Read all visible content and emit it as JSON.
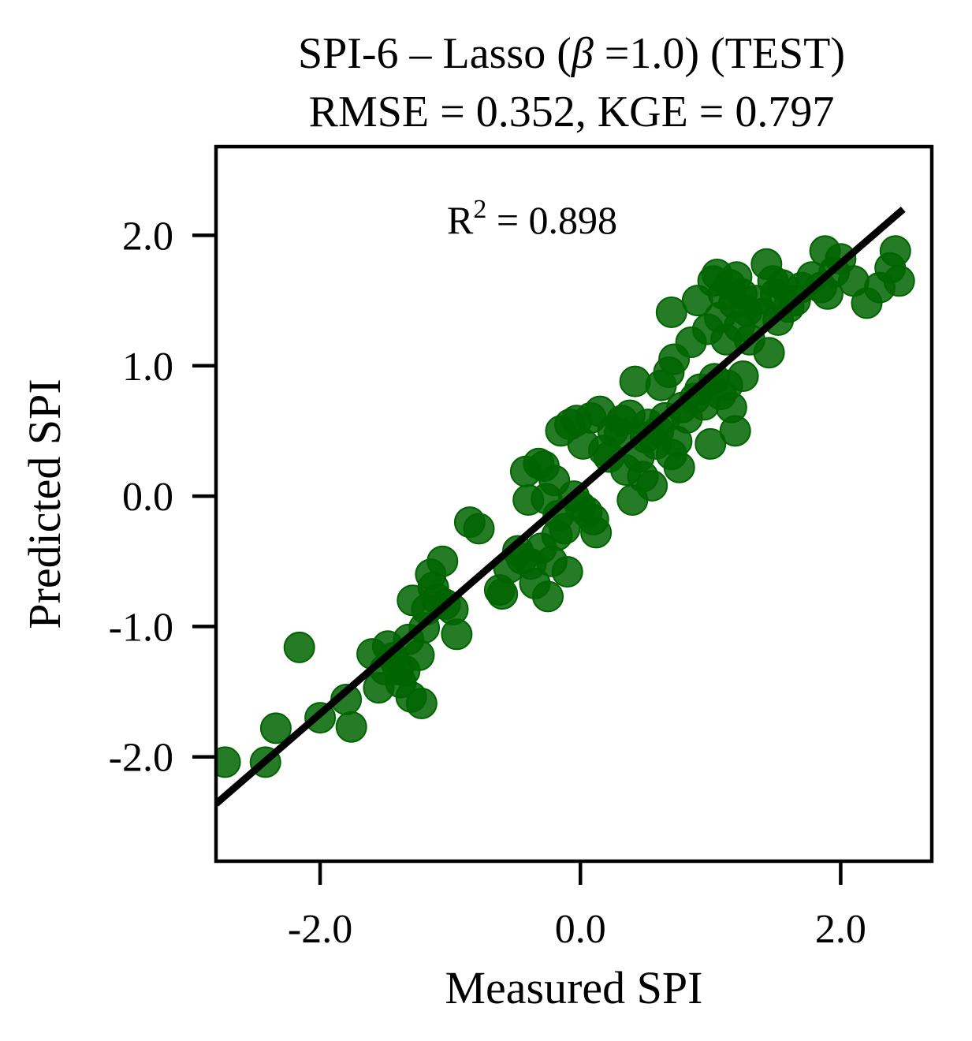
{
  "chart_data": {
    "type": "scatter",
    "title_line1_pre": "SPI-6 – Lasso (",
    "title_beta": "β",
    "title_line1_post": " =1.0) (TEST)",
    "title_line2": "RMSE = 0.352, KGE = 0.797",
    "annotation_base": "R",
    "annotation_sup": "2",
    "annotation_rest": " = 0.898",
    "xlabel": "Measured SPI",
    "ylabel": "Predicted SPI",
    "xlim": [
      -2.8,
      2.7
    ],
    "ylim": [
      -2.8,
      2.68
    ],
    "xticks": [
      -2.0,
      0.0,
      2.0
    ],
    "xtick_labels": [
      "-2.0",
      "0.0",
      "2.0"
    ],
    "yticks": [
      -2.0,
      -1.0,
      0.0,
      1.0,
      2.0
    ],
    "ytick_labels": [
      "-2.0",
      "-1.0",
      "0.0",
      "1.0",
      "2.0"
    ],
    "grid": false,
    "point_color": "#006400",
    "line_color": "#000000",
    "fit_line": {
      "x": [
        -2.8,
        2.48
      ],
      "y": [
        -2.36,
        2.2
      ]
    },
    "series": [
      {
        "points": [
          [
            -2.73,
            -2.04
          ],
          [
            -2.42,
            -2.04
          ],
          [
            -2.34,
            -1.78
          ],
          [
            -2.16,
            -1.16
          ],
          [
            -2.0,
            -1.7
          ],
          [
            -1.8,
            -1.56
          ],
          [
            -1.76,
            -1.77
          ],
          [
            -1.6,
            -1.21
          ],
          [
            -1.55,
            -1.47
          ],
          [
            -1.5,
            -1.33
          ],
          [
            -1.48,
            -1.15
          ],
          [
            -1.44,
            -1.24
          ],
          [
            -1.4,
            -1.33
          ],
          [
            -1.38,
            -1.43
          ],
          [
            -1.35,
            -1.34
          ],
          [
            -1.32,
            -1.1
          ],
          [
            -1.3,
            -1.54
          ],
          [
            -1.29,
            -0.8
          ],
          [
            -1.24,
            -1.22
          ],
          [
            -1.22,
            -1.59
          ],
          [
            -1.2,
            -1.01
          ],
          [
            -1.18,
            -0.87
          ],
          [
            -1.15,
            -0.6
          ],
          [
            -1.13,
            -0.7
          ],
          [
            -1.1,
            -0.79
          ],
          [
            -1.06,
            -0.5
          ],
          [
            -1.04,
            -0.83
          ],
          [
            -0.98,
            -0.87
          ],
          [
            -0.95,
            -1.06
          ],
          [
            -0.85,
            -0.2
          ],
          [
            -0.78,
            -0.25
          ],
          [
            -0.62,
            -0.72
          ],
          [
            -0.6,
            -0.75
          ],
          [
            -0.55,
            -0.55
          ],
          [
            -0.48,
            -0.42
          ],
          [
            -0.45,
            -0.48
          ],
          [
            -0.42,
            0.19
          ],
          [
            -0.4,
            -0.03
          ],
          [
            -0.38,
            -0.52
          ],
          [
            -0.35,
            -0.67
          ],
          [
            -0.32,
            0.25
          ],
          [
            -0.3,
            -0.4
          ],
          [
            -0.28,
            0.23
          ],
          [
            -0.26,
            -0.02
          ],
          [
            -0.25,
            -0.77
          ],
          [
            -0.22,
            -0.5
          ],
          [
            -0.2,
            0.12
          ],
          [
            -0.18,
            -0.3
          ],
          [
            -0.17,
            -0.15
          ],
          [
            -0.15,
            0.5
          ],
          [
            -0.12,
            -0.25
          ],
          [
            -0.1,
            -0.58
          ],
          [
            -0.08,
            0.55
          ],
          [
            -0.05,
            0.0
          ],
          [
            -0.03,
            0.58
          ],
          [
            0.0,
            -0.08
          ],
          [
            0.02,
            0.4
          ],
          [
            0.05,
            -0.12
          ],
          [
            0.08,
            0.6
          ],
          [
            0.1,
            -0.18
          ],
          [
            0.12,
            -0.28
          ],
          [
            0.15,
            0.65
          ],
          [
            0.18,
            0.35
          ],
          [
            0.22,
            0.3
          ],
          [
            0.25,
            0.5
          ],
          [
            0.3,
            0.48
          ],
          [
            0.32,
            0.58
          ],
          [
            0.35,
            0.2
          ],
          [
            0.38,
            0.62
          ],
          [
            0.4,
            -0.03
          ],
          [
            0.42,
            0.88
          ],
          [
            0.45,
            0.3
          ],
          [
            0.48,
            0.15
          ],
          [
            0.5,
            0.45
          ],
          [
            0.52,
            0.55
          ],
          [
            0.55,
            0.08
          ],
          [
            0.58,
            0.4
          ],
          [
            0.6,
            0.5
          ],
          [
            0.62,
            0.85
          ],
          [
            0.65,
            0.6
          ],
          [
            0.68,
            0.95
          ],
          [
            0.7,
            0.32
          ],
          [
            0.72,
            1.05
          ],
          [
            0.74,
            0.42
          ],
          [
            0.76,
            0.22
          ],
          [
            0.78,
            0.68
          ],
          [
            0.7,
            1.41
          ],
          [
            0.82,
            0.6
          ],
          [
            0.85,
            1.18
          ],
          [
            0.88,
            0.75
          ],
          [
            0.9,
            1.5
          ],
          [
            0.92,
            0.82
          ],
          [
            0.95,
            0.7
          ],
          [
            0.98,
            1.28
          ],
          [
            1.0,
            0.4
          ],
          [
            1.02,
            1.65
          ],
          [
            1.03,
            0.9
          ],
          [
            1.05,
            1.7
          ],
          [
            1.07,
            1.37
          ],
          [
            1.08,
            0.78
          ],
          [
            1.1,
            1.55
          ],
          [
            1.12,
            1.2
          ],
          [
            1.13,
            0.85
          ],
          [
            1.15,
            1.62
          ],
          [
            1.16,
            0.68
          ],
          [
            1.18,
            1.48
          ],
          [
            1.19,
            0.5
          ],
          [
            1.2,
            1.68
          ],
          [
            1.22,
            1.3
          ],
          [
            1.24,
            1.55
          ],
          [
            1.25,
            0.92
          ],
          [
            1.28,
            1.42
          ],
          [
            1.3,
            1.2
          ],
          [
            1.35,
            1.5
          ],
          [
            1.4,
            1.4
          ],
          [
            1.43,
            1.78
          ],
          [
            1.45,
            1.1
          ],
          [
            1.48,
            1.65
          ],
          [
            1.5,
            1.55
          ],
          [
            1.52,
            1.35
          ],
          [
            1.55,
            1.62
          ],
          [
            1.6,
            1.45
          ],
          [
            1.65,
            1.5
          ],
          [
            1.7,
            1.6
          ],
          [
            1.78,
            1.68
          ],
          [
            1.85,
            1.6
          ],
          [
            1.88,
            1.88
          ],
          [
            1.9,
            1.55
          ],
          [
            1.95,
            1.72
          ],
          [
            2.0,
            1.82
          ],
          [
            2.1,
            1.65
          ],
          [
            2.2,
            1.48
          ],
          [
            2.3,
            1.6
          ],
          [
            2.38,
            1.75
          ],
          [
            2.42,
            1.88
          ],
          [
            2.45,
            1.65
          ]
        ]
      }
    ]
  }
}
